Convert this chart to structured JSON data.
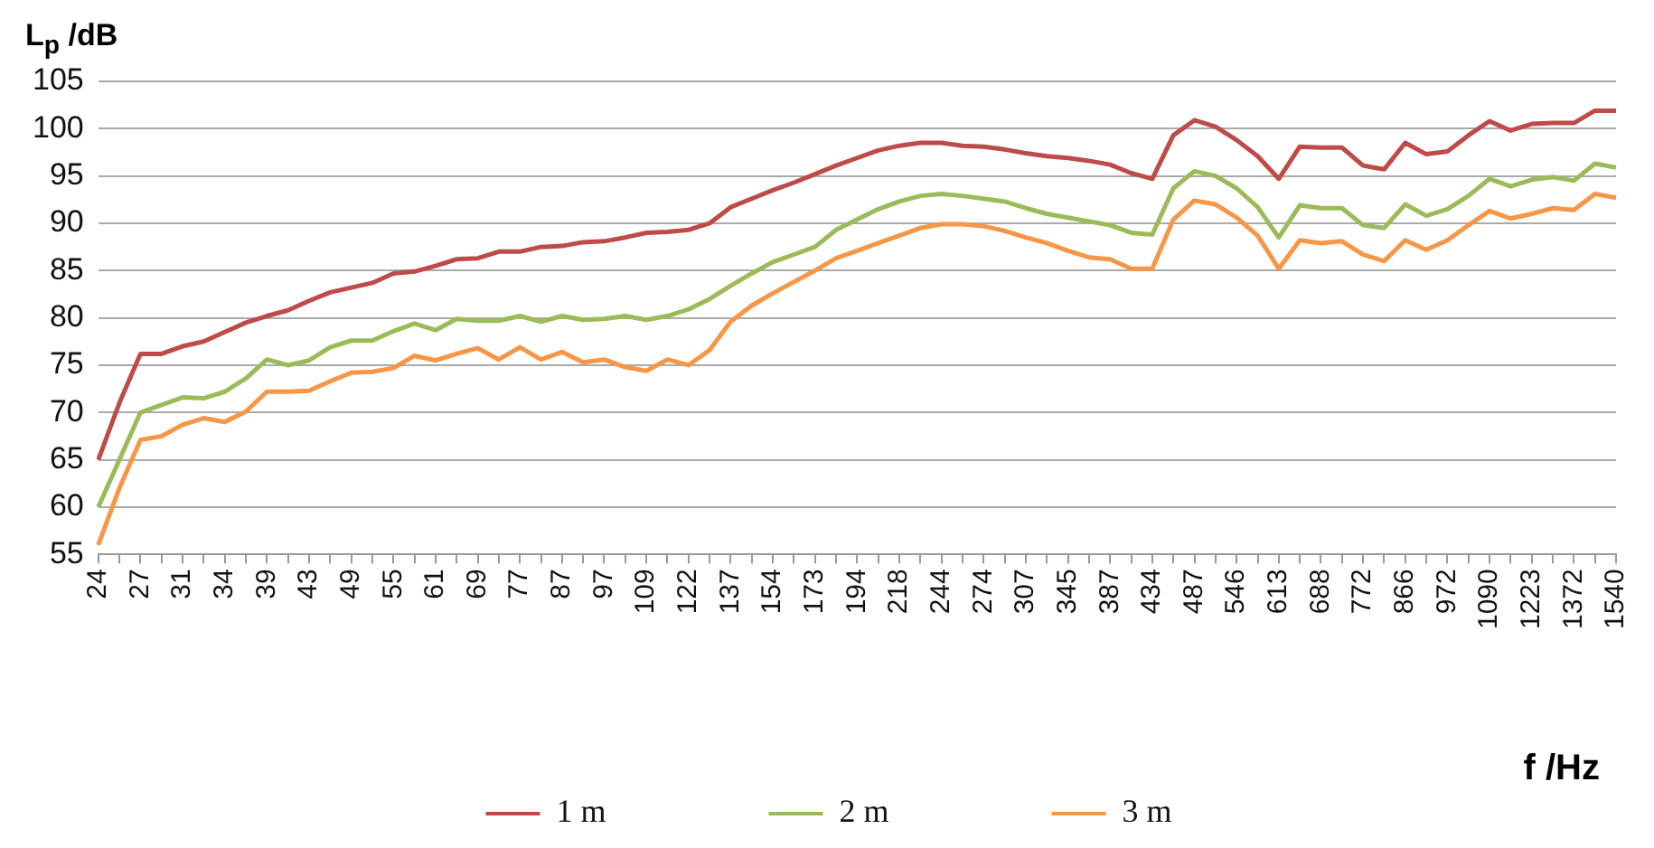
{
  "chart_data": {
    "type": "line",
    "xlabel": "f /Hz",
    "ylabel": "L$_{p}$ /dB",
    "categories": [
      "24",
      null,
      "27",
      null,
      "31",
      null,
      "34",
      null,
      "39",
      null,
      "43",
      null,
      "49",
      null,
      "55",
      null,
      "61",
      null,
      "69",
      null,
      "77",
      null,
      "87",
      null,
      "97",
      null,
      "109",
      null,
      "122",
      null,
      "137",
      null,
      "154",
      null,
      "173",
      null,
      "194",
      null,
      "218",
      null,
      "244",
      null,
      "274",
      null,
      "307",
      null,
      "345",
      null,
      "387",
      null,
      "434",
      null,
      "487",
      null,
      "546",
      null,
      "613",
      null,
      "688",
      null,
      "772",
      null,
      "866",
      null,
      "972",
      null,
      "1090",
      null,
      "1223",
      null,
      "1372",
      null,
      "1540"
    ],
    "series": [
      {
        "name": "1 m",
        "color": "#be4b48",
        "values": [
          65,
          71,
          76.2,
          76.2,
          77,
          77.5,
          78.5,
          79.5,
          80.2,
          80.8,
          81.8,
          82.7,
          83.2,
          83.7,
          84.7,
          84.9,
          85.5,
          86.2,
          86.3,
          87,
          87,
          87.5,
          87.6,
          88,
          88.1,
          88.5,
          89,
          89.1,
          89.3,
          90,
          91.7,
          92.6,
          93.5,
          94.3,
          95.2,
          96.1,
          96.9,
          97.7,
          98.2,
          98.5,
          98.5,
          98.2,
          98.1,
          97.8,
          97.4,
          97.1,
          96.9,
          96.6,
          96.2,
          95.3,
          94.7,
          99.3,
          100.9,
          100.2,
          98.8,
          97.1,
          94.7,
          98.1,
          98,
          98,
          96.1,
          95.7,
          98.5,
          97.3,
          97.6,
          99.3,
          100.8,
          99.8,
          100.5,
          100.6,
          100.6,
          101.9,
          101.9
        ]
      },
      {
        "name": "2 m",
        "color": "#9bbb59",
        "values": [
          60,
          65,
          70,
          70.8,
          71.6,
          71.5,
          72.2,
          73.6,
          75.6,
          75,
          75.5,
          76.9,
          77.6,
          77.6,
          78.6,
          79.4,
          78.7,
          79.9,
          79.7,
          79.7,
          80.2,
          79.6,
          80.2,
          79.8,
          79.9,
          80.2,
          79.8,
          80.2,
          80.9,
          82,
          83.4,
          84.7,
          85.9,
          86.7,
          87.5,
          89.3,
          90.4,
          91.5,
          92.3,
          92.9,
          93.1,
          92.9,
          92.6,
          92.3,
          91.6,
          91,
          90.6,
          90.2,
          89.8,
          89,
          88.8,
          93.7,
          95.5,
          95,
          93.7,
          91.7,
          88.5,
          91.9,
          91.6,
          91.6,
          89.8,
          89.5,
          92,
          90.8,
          91.5,
          92.9,
          94.7,
          93.9,
          94.6,
          94.9,
          94.5,
          96.3,
          95.9
        ]
      },
      {
        "name": "3 m",
        "color": "#f79646",
        "values": [
          56,
          62,
          67.1,
          67.5,
          68.7,
          69.4,
          69,
          70.1,
          72.2,
          72.2,
          72.3,
          73.3,
          74.2,
          74.3,
          74.7,
          76,
          75.5,
          76.2,
          76.8,
          75.6,
          76.9,
          75.6,
          76.4,
          75.3,
          75.6,
          74.8,
          74.4,
          75.6,
          75,
          76.6,
          79.6,
          81.3,
          82.6,
          83.8,
          85,
          86.3,
          87.1,
          87.9,
          88.7,
          89.5,
          89.9,
          89.9,
          89.7,
          89.2,
          88.5,
          87.9,
          87.1,
          86.4,
          86.2,
          85.2,
          85.2,
          90.4,
          92.4,
          92,
          90.6,
          88.7,
          85.2,
          88.2,
          87.9,
          88.1,
          86.7,
          86,
          88.2,
          87.2,
          88.2,
          89.8,
          91.3,
          90.5,
          91,
          91.6,
          91.4,
          93.1,
          92.7
        ]
      }
    ],
    "ylim": [
      55,
      105
    ],
    "yticks": [
      55,
      60,
      65,
      70,
      75,
      80,
      85,
      90,
      95,
      100,
      105
    ],
    "grid": "y",
    "legend": "bottom",
    "marker": "none",
    "line_style": "solid"
  }
}
